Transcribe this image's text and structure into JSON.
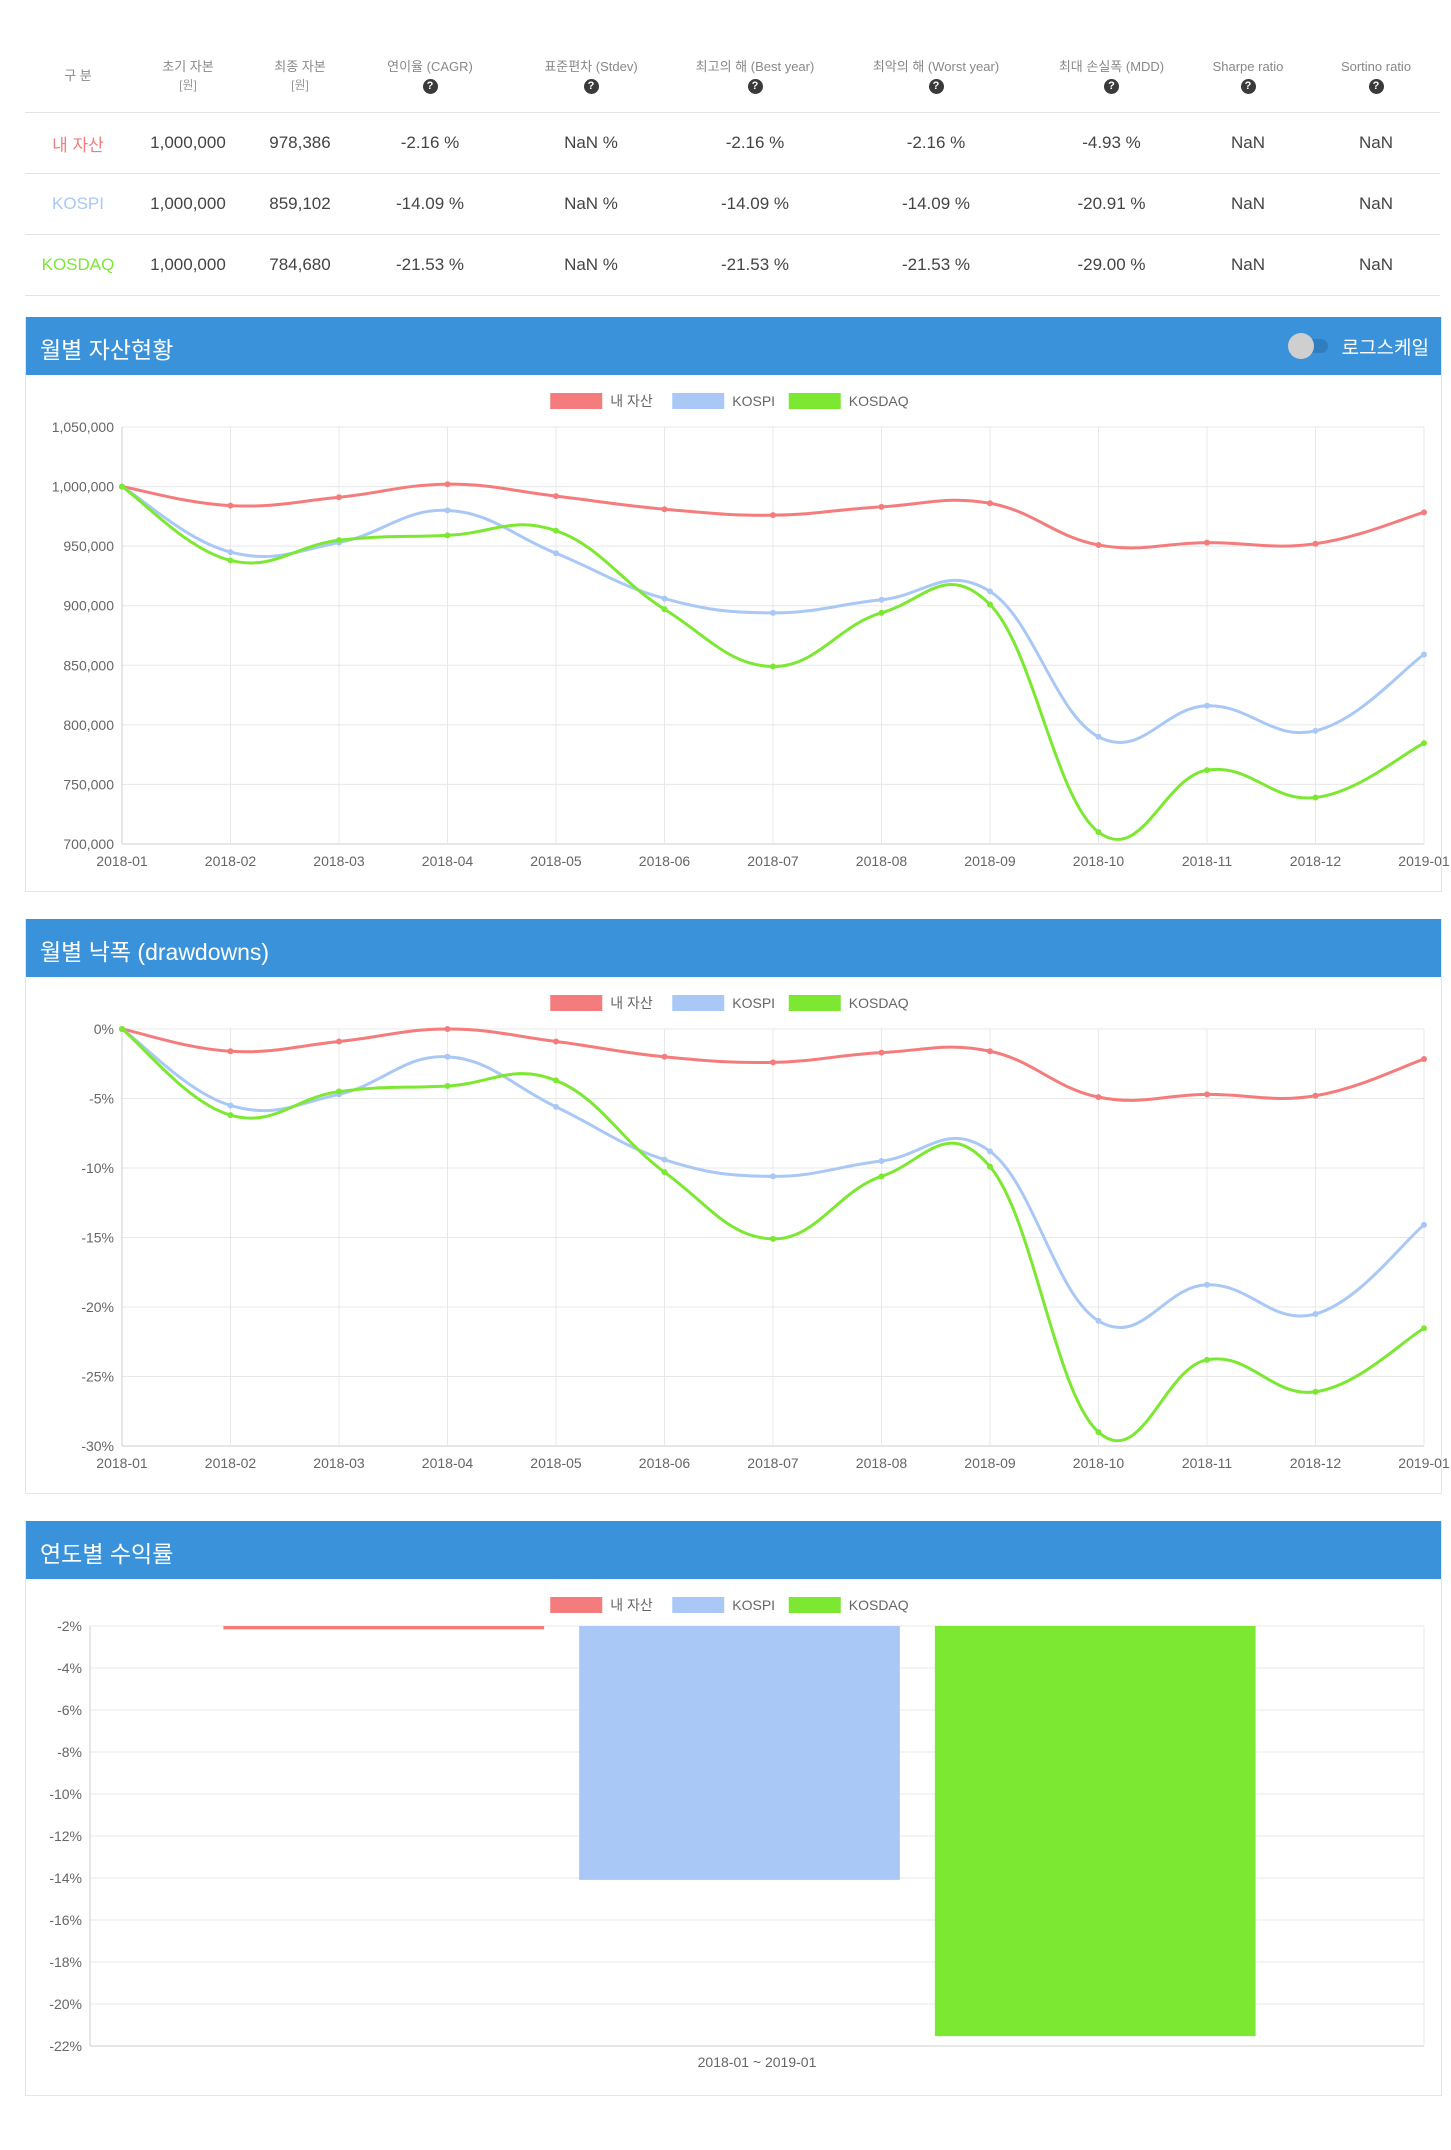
{
  "table": {
    "headers": [
      {
        "label": "구 분",
        "sub": "",
        "help": false
      },
      {
        "label": "초기 자본",
        "sub": "[원]",
        "help": false
      },
      {
        "label": "최종 자본",
        "sub": "[원]",
        "help": false
      },
      {
        "label": "연이율 (CAGR)",
        "sub": "",
        "help": true
      },
      {
        "label": "표준편차 (Stdev)",
        "sub": "",
        "help": true
      },
      {
        "label": "최고의 해 (Best year)",
        "sub": "",
        "help": true
      },
      {
        "label": "최악의 해 (Worst year)",
        "sub": "",
        "help": true
      },
      {
        "label": "최대 손실폭 (MDD)",
        "sub": "",
        "help": true
      },
      {
        "label": "Sharpe ratio",
        "sub": "",
        "help": true
      },
      {
        "label": "Sortino ratio",
        "sub": "",
        "help": true
      }
    ],
    "help_glyph": "?",
    "rows": [
      {
        "name": "내 자산",
        "color": "#f47c7c",
        "cells": [
          "1,000,000",
          "978,386",
          "-2.16 %",
          "NaN %",
          "-2.16 %",
          "-2.16 %",
          "-4.93 %",
          "NaN",
          "NaN"
        ]
      },
      {
        "name": "KOSPI",
        "color": "#a9c8f6",
        "cells": [
          "1,000,000",
          "859,102",
          "-14.09 %",
          "NaN %",
          "-14.09 %",
          "-14.09 %",
          "-20.91 %",
          "NaN",
          "NaN"
        ]
      },
      {
        "name": "KOSDAQ",
        "color": "#7ce832",
        "cells": [
          "1,000,000",
          "784,680",
          "-21.53 %",
          "NaN %",
          "-21.53 %",
          "-21.53 %",
          "-29.00 %",
          "NaN",
          "NaN"
        ]
      }
    ]
  },
  "panels": {
    "monthly_assets": {
      "title": "월별 자산현황",
      "toggle_label": "로그스케일",
      "log_scale": false
    },
    "drawdowns": {
      "title": "월별 낙폭 (drawdowns)"
    },
    "yearly_returns": {
      "title": "연도별 수익률"
    }
  },
  "colors": {
    "my": "#f47c7c",
    "kospi": "#a9c8f6",
    "kosdaq": "#7ce832",
    "header": "#3a93da"
  },
  "chart_data": [
    {
      "type": "line",
      "x": [
        "2018-01",
        "2018-02",
        "2018-03",
        "2018-04",
        "2018-05",
        "2018-06",
        "2018-07",
        "2018-08",
        "2018-09",
        "2018-10",
        "2018-11",
        "2018-12",
        "2019-01"
      ],
      "series": [
        {
          "name": "내 자산",
          "color": "#f47c7c",
          "values": [
            1000000,
            984000,
            991000,
            1002000,
            992000,
            981000,
            976000,
            983000,
            986000,
            951000,
            953000,
            952000,
            978386
          ]
        },
        {
          "name": "KOSPI",
          "color": "#a9c8f6",
          "values": [
            1000000,
            945000,
            953000,
            980000,
            944000,
            906000,
            894000,
            905000,
            912000,
            790000,
            816000,
            795000,
            859102
          ]
        },
        {
          "name": "KOSDAQ",
          "color": "#7ce832",
          "values": [
            1000000,
            938000,
            955000,
            959000,
            963000,
            897000,
            849000,
            894000,
            901000,
            710000,
            762000,
            739000,
            784680
          ]
        }
      ],
      "yticks": [
        700000,
        750000,
        800000,
        850000,
        900000,
        950000,
        1000000,
        1050000
      ],
      "ytick_labels": [
        "700,000",
        "750,000",
        "800,000",
        "850,000",
        "900,000",
        "950,000",
        "1,000,000",
        "1,050,000"
      ],
      "ylim": [
        700000,
        1050000
      ],
      "grid": true,
      "legend": "top-center"
    },
    {
      "type": "line",
      "x": [
        "2018-01",
        "2018-02",
        "2018-03",
        "2018-04",
        "2018-05",
        "2018-06",
        "2018-07",
        "2018-08",
        "2018-09",
        "2018-10",
        "2018-11",
        "2018-12",
        "2019-01"
      ],
      "series": [
        {
          "name": "내 자산",
          "color": "#f47c7c",
          "values": [
            0,
            -1.6,
            -0.9,
            0,
            -0.9,
            -2.0,
            -2.4,
            -1.7,
            -1.6,
            -4.9,
            -4.7,
            -4.8,
            -2.16
          ]
        },
        {
          "name": "KOSPI",
          "color": "#a9c8f6",
          "values": [
            0,
            -5.5,
            -4.7,
            -2.0,
            -5.6,
            -9.4,
            -10.6,
            -9.5,
            -8.8,
            -21.0,
            -18.4,
            -20.5,
            -14.09
          ]
        },
        {
          "name": "KOSDAQ",
          "color": "#7ce832",
          "values": [
            0,
            -6.2,
            -4.5,
            -4.1,
            -3.7,
            -10.3,
            -15.1,
            -10.6,
            -9.9,
            -29.0,
            -23.8,
            -26.1,
            -21.53
          ]
        }
      ],
      "yticks": [
        -30,
        -25,
        -20,
        -15,
        -10,
        -5,
        0
      ],
      "ytick_labels": [
        "-30%",
        "-25%",
        "-20%",
        "-15%",
        "-10%",
        "-5%",
        "0%"
      ],
      "ylim": [
        -30,
        0
      ],
      "grid": true,
      "legend": "top-center"
    },
    {
      "type": "bar",
      "categories": [
        "2018-01 ~ 2019-01"
      ],
      "series": [
        {
          "name": "내 자산",
          "color": "#f47c7c",
          "values": [
            -2.16
          ]
        },
        {
          "name": "KOSPI",
          "color": "#a9c8f6",
          "values": [
            -14.09
          ]
        },
        {
          "name": "KOSDAQ",
          "color": "#7ce832",
          "values": [
            -21.53
          ]
        }
      ],
      "yticks": [
        -22,
        -20,
        -18,
        -16,
        -14,
        -12,
        -10,
        -8,
        -6,
        -4,
        -2
      ],
      "ytick_labels": [
        "-22%",
        "-20%",
        "-18%",
        "-16%",
        "-14%",
        "-12%",
        "-10%",
        "-8%",
        "-6%",
        "-4%",
        "-2%"
      ],
      "ylim": [
        -22,
        -2
      ],
      "grid": true,
      "legend": "top-center"
    }
  ]
}
